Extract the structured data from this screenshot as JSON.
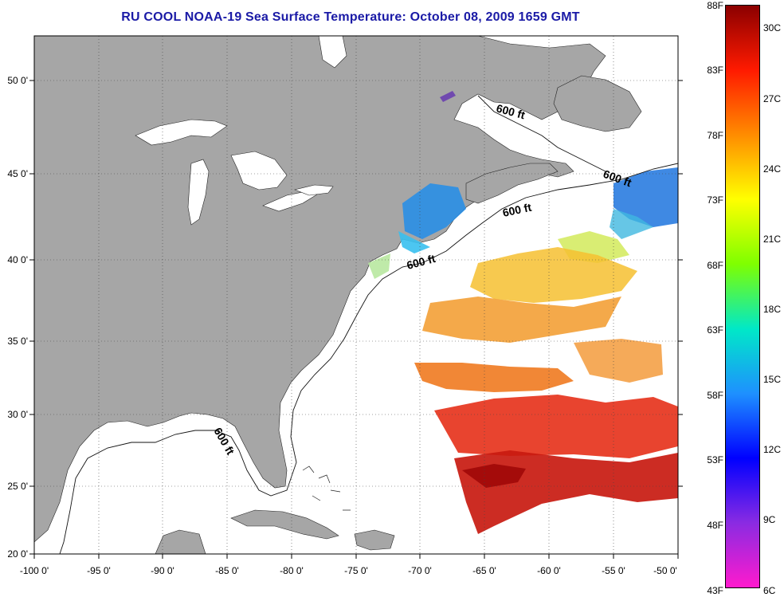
{
  "title": "RU COOL  NOAA-19  Sea Surface Temperature:  October 08, 2009 1659 GMT",
  "map": {
    "land_color": "#a6a6a6",
    "ocean_color": "#ffffff",
    "longitude_labels": [
      "-100 0'",
      "-95 0'",
      "-90 0'",
      "-85 0'",
      "-80 0'",
      "-75 0'",
      "-70 0'",
      "-65 0'",
      "-60 0'",
      "-55 0'",
      "-50 0'"
    ],
    "latitude_labels": [
      "50 0'",
      "45 0'",
      "40 0'",
      "35 0'",
      "30 0'",
      "25 0'",
      "20 0'"
    ],
    "contour_labels": [
      "600 ft",
      "600 ft",
      "600 ft",
      "600 ft",
      "600 ft"
    ],
    "grid": "dotted"
  },
  "colorbar": {
    "fahrenheit_labels": [
      "88F",
      "83F",
      "78F",
      "73F",
      "68F",
      "63F",
      "58F",
      "53F",
      "48F",
      "43F"
    ],
    "celsius_labels": [
      "30C",
      "27C",
      "24C",
      "21C",
      "18C",
      "15C",
      "12C",
      "9C",
      "6C"
    ],
    "colors": [
      "#8b0000",
      "#ff1a00",
      "#ff8c00",
      "#ffff00",
      "#7fff00",
      "#00e8c8",
      "#1e90ff",
      "#0000ff",
      "#8a2be2",
      "#ff1acd"
    ]
  }
}
